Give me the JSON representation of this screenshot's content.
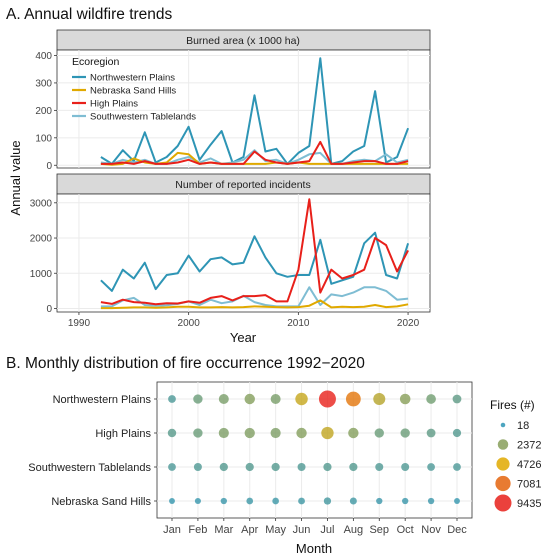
{
  "panel_a": {
    "title": "A. Annual wildfire trends",
    "ylabel": "Annual value",
    "xlabel": "Year",
    "legend_title": "Ecoregion",
    "x_ticks": [
      1990,
      2000,
      2010,
      2020
    ]
  },
  "panel_b": {
    "title": "B. Monthly distribution of fire occurrence 1992−2020",
    "xlabel": "Month",
    "legend_title": "Fires (#)"
  },
  "colors": {
    "Northwestern Plains": "#2e95b5",
    "Nebraska Sand Hills": "#e0a900",
    "High Plains": "#e8201a",
    "Southwestern Tablelands": "#7fbdd3",
    "strip_bg": "#d9d9d9",
    "grid": "#ebebeb"
  },
  "chart_data": [
    {
      "type": "line",
      "title": "Burned area (x 1000 ha)",
      "ylim": [
        -10,
        420
      ],
      "yticks": [
        0,
        100,
        200,
        300,
        400
      ],
      "xlim": [
        1988,
        2022
      ],
      "x": [
        1992,
        1993,
        1994,
        1995,
        1996,
        1997,
        1998,
        1999,
        2000,
        2001,
        2002,
        2003,
        2004,
        2005,
        2006,
        2007,
        2008,
        2009,
        2010,
        2011,
        2012,
        2013,
        2014,
        2015,
        2016,
        2017,
        2018,
        2019,
        2020
      ],
      "series": [
        {
          "name": "Northwestern Plains",
          "values": [
            30,
            5,
            55,
            15,
            120,
            10,
            30,
            70,
            140,
            20,
            75,
            125,
            10,
            30,
            255,
            50,
            60,
            5,
            45,
            70,
            390,
            5,
            15,
            50,
            70,
            270,
            10,
            30,
            135
          ]
        },
        {
          "name": "Nebraska Sand Hills",
          "values": [
            5,
            2,
            5,
            25,
            10,
            5,
            10,
            45,
            40,
            5,
            10,
            5,
            5,
            5,
            5,
            5,
            10,
            5,
            10,
            5,
            5,
            5,
            5,
            5,
            5,
            5,
            5,
            5,
            5
          ]
        },
        {
          "name": "High Plains",
          "values": [
            5,
            5,
            10,
            5,
            15,
            5,
            5,
            10,
            20,
            5,
            10,
            5,
            5,
            5,
            50,
            20,
            10,
            5,
            10,
            15,
            85,
            5,
            5,
            10,
            15,
            15,
            5,
            5,
            15
          ]
        },
        {
          "name": "Southwestern Tablelands",
          "values": [
            10,
            5,
            20,
            10,
            20,
            5,
            5,
            20,
            30,
            10,
            25,
            5,
            10,
            20,
            55,
            15,
            20,
            5,
            20,
            40,
            45,
            5,
            5,
            15,
            20,
            15,
            40,
            10,
            20
          ]
        }
      ]
    },
    {
      "type": "line",
      "title": "Number of reported incidents",
      "ylim": [
        -100,
        3250
      ],
      "yticks": [
        0,
        1000,
        2000,
        3000
      ],
      "xlim": [
        1988,
        2022
      ],
      "x": [
        1992,
        1993,
        1994,
        1995,
        1996,
        1997,
        1998,
        1999,
        2000,
        2001,
        2002,
        2003,
        2004,
        2005,
        2006,
        2007,
        2008,
        2009,
        2010,
        2011,
        2012,
        2013,
        2014,
        2015,
        2016,
        2017,
        2018,
        2019,
        2020
      ],
      "series": [
        {
          "name": "Northwestern Plains",
          "values": [
            800,
            500,
            1100,
            850,
            1300,
            550,
            950,
            1000,
            1500,
            1050,
            1400,
            1450,
            1250,
            1300,
            2050,
            1450,
            1000,
            900,
            950,
            950,
            1950,
            700,
            800,
            900,
            1850,
            2150,
            950,
            850,
            1850
          ]
        },
        {
          "name": "Nebraska Sand Hills",
          "values": [
            10,
            10,
            20,
            30,
            30,
            20,
            30,
            50,
            50,
            30,
            30,
            40,
            30,
            40,
            60,
            50,
            40,
            30,
            40,
            80,
            230,
            30,
            50,
            40,
            50,
            100,
            40,
            60,
            120
          ]
        },
        {
          "name": "High Plains",
          "values": [
            180,
            130,
            250,
            180,
            160,
            120,
            150,
            140,
            200,
            160,
            300,
            350,
            230,
            350,
            350,
            380,
            200,
            200,
            1100,
            3100,
            450,
            1100,
            850,
            950,
            1100,
            2000,
            1800,
            1050,
            1650
          ]
        },
        {
          "name": "Southwestern Tablelands",
          "values": [
            60,
            60,
            230,
            300,
            100,
            80,
            90,
            130,
            200,
            100,
            250,
            150,
            200,
            360,
            180,
            100,
            60,
            60,
            60,
            600,
            100,
            400,
            350,
            450,
            600,
            600,
            500,
            250,
            280
          ]
        }
      ]
    },
    {
      "type": "scatter",
      "title": "",
      "categories": [
        "Jan",
        "Feb",
        "Mar",
        "Apr",
        "May",
        "Jun",
        "Jul",
        "Aug",
        "Sep",
        "Oct",
        "Nov",
        "Dec"
      ],
      "rows": [
        "Northwestern Plains",
        "High Plains",
        "Southwestern Tablelands",
        "Nebraska Sand Hills"
      ],
      "values": [
        [
          800,
          1600,
          2000,
          2300,
          2000,
          4000,
          9435,
          6500,
          3600,
          2400,
          1800,
          1300
        ],
        [
          1100,
          1600,
          2100,
          2200,
          2100,
          2300,
          3900,
          2300,
          1600,
          1600,
          1300,
          1000
        ],
        [
          800,
          900,
          1000,
          1000,
          1000,
          900,
          1000,
          1000,
          900,
          900,
          800,
          800
        ],
        [
          200,
          250,
          300,
          400,
          400,
          450,
          600,
          500,
          300,
          300,
          300,
          200
        ]
      ],
      "size_legend": [
        18,
        2372,
        4726,
        7081,
        9435
      ],
      "color_scale": [
        "#2e95b5",
        "#e0a900",
        "#e8201a"
      ]
    }
  ]
}
